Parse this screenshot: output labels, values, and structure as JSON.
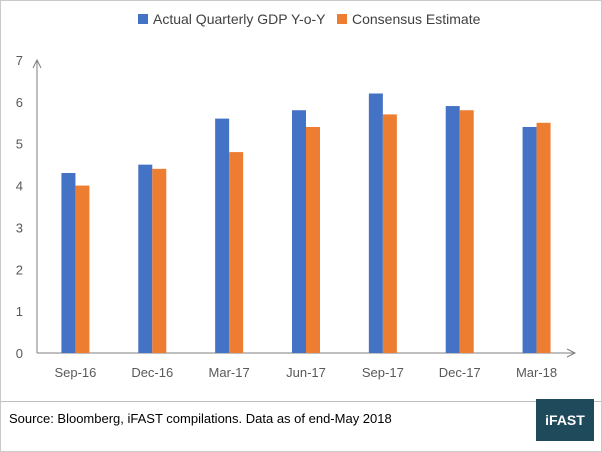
{
  "chart_data": {
    "type": "bar",
    "categories": [
      "Sep-16",
      "Dec-16",
      "Mar-17",
      "Jun-17",
      "Sep-17",
      "Dec-17",
      "Mar-18"
    ],
    "series": [
      {
        "name": "Actual Quarterly GDP Y-o-Y",
        "color": "#4472c4",
        "values": [
          4.3,
          4.5,
          5.6,
          5.8,
          6.2,
          5.9,
          5.4
        ]
      },
      {
        "name": "Consensus Estimate",
        "color": "#ed7d31",
        "values": [
          4.0,
          4.4,
          4.8,
          5.4,
          5.7,
          5.8,
          5.5
        ]
      }
    ],
    "yticks": [
      0,
      1,
      2,
      3,
      4,
      5,
      6,
      7
    ],
    "ylim": [
      0,
      7
    ],
    "grid": false,
    "legend": "top"
  },
  "footer": {
    "source": "Source: Bloomberg, iFAST compilations. Data as of end-May 2018"
  },
  "logo": {
    "text": "iFAST",
    "color": "#1e4a5c"
  }
}
